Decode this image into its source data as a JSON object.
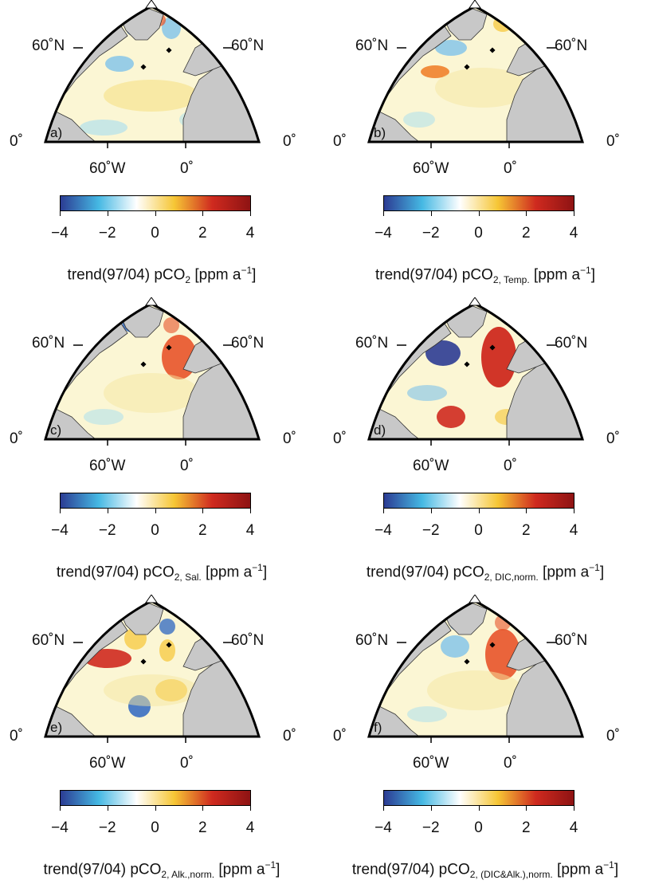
{
  "colorbar": {
    "ticks": [
      "−4",
      "−2",
      "0",
      "2",
      "4"
    ],
    "min": -4,
    "max": 4,
    "colors": [
      "#2c3c93",
      "#45b8e3",
      "#ffffff",
      "#f6c635",
      "#cf2a1f",
      "#8e1313"
    ]
  },
  "axes": {
    "lat_left": "60˚N",
    "lat_right": "60˚N",
    "eq_left": "0˚",
    "eq_right": "0˚",
    "lon_west": "60˚W",
    "lon_zero": "0˚"
  },
  "panels": [
    {
      "label": "a)",
      "title_main": "trend(97/04) pCO",
      "title_sub": "2",
      "title_unit": " [ppm a",
      "title_sup": "−1",
      "title_end": "]"
    },
    {
      "label": "b)",
      "title_main": "trend(97/04) pCO",
      "title_sub": "2, Temp.",
      "title_unit": " [ppm a",
      "title_sup": "−1",
      "title_end": "]"
    },
    {
      "label": "c)",
      "title_main": "trend(97/04) pCO",
      "title_sub": "2, Sal.",
      "title_unit": " [ppm a",
      "title_sup": "−1",
      "title_end": "]"
    },
    {
      "label": "d)",
      "title_main": "trend(97/04) pCO",
      "title_sub": "2, DIC,norm.",
      "title_unit": " [ppm a",
      "title_sup": "−1",
      "title_end": "]"
    },
    {
      "label": "e)",
      "title_main": "trend(97/04) pCO",
      "title_sub": "2, Alk.,norm.",
      "title_unit": " [ppm a",
      "title_sup": "−1",
      "title_end": "]"
    },
    {
      "label": "f)",
      "title_main": "trend(97/04) pCO",
      "title_sub": "2, (DIC&Alk.),norm.",
      "title_unit": " [ppm a",
      "title_sup": "−1",
      "title_end": "]"
    }
  ],
  "colors": {
    "land": "#c8c8c8",
    "ocean_base": "#fbf6d4",
    "warm": "#e8542a",
    "cold": "#3a6fc2"
  }
}
